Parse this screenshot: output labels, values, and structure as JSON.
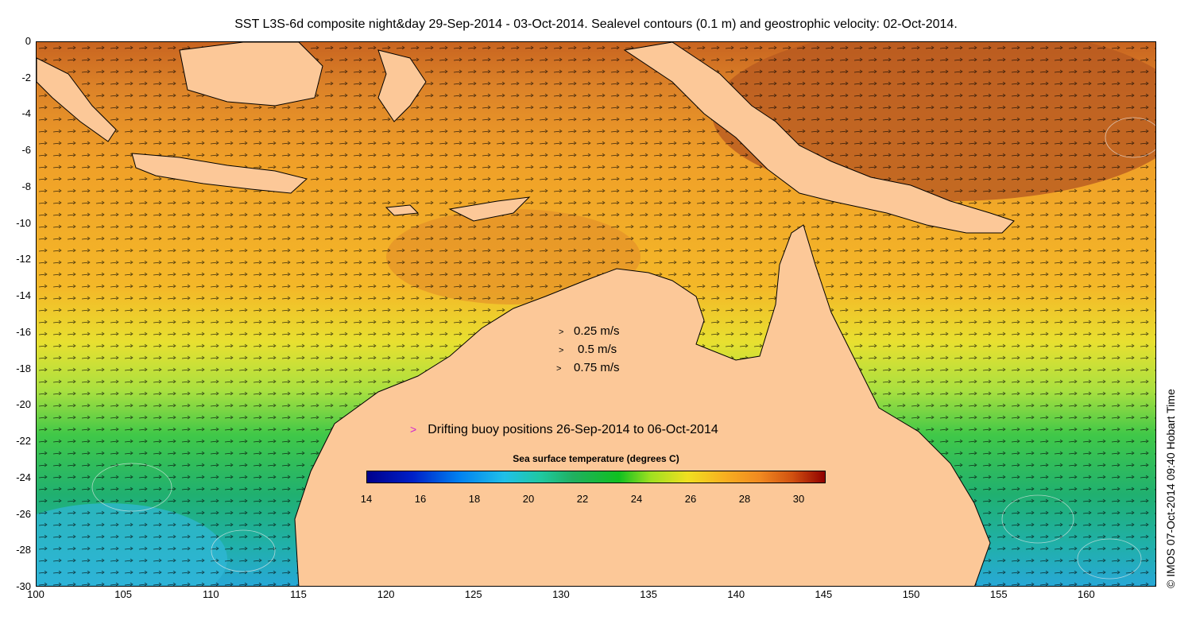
{
  "title": "SST L3S-6d composite night&day 29-Sep-2014 - 03-Oct-2014. Sealevel contours (0.1 m) and geostrophic velocity: 02-Oct-2014.",
  "credit": "© IMOS 07-Oct-2014 09:40 Hobart Time",
  "map": {
    "lon_range": [
      100,
      164
    ],
    "lat_range": [
      -30,
      0
    ],
    "x_ticks": [
      "100",
      "105",
      "110",
      "115",
      "120",
      "125",
      "130",
      "135",
      "140",
      "145",
      "150",
      "155",
      "160"
    ],
    "y_ticks": [
      "0",
      "-2",
      "-4",
      "-6",
      "-8",
      "-10",
      "-12",
      "-14",
      "-16",
      "-18",
      "-20",
      "-22",
      "-24",
      "-26",
      "-28",
      "-30"
    ],
    "colors": {
      "land": "#fcc898",
      "coast": "#000000",
      "contours": "#e8e8e8",
      "buoy": "#d020d0"
    }
  },
  "velocity_legend": [
    {
      "arrow": ">",
      "label": "0.25 m/s"
    },
    {
      "arrow": ">",
      "label": "0.5 m/s"
    },
    {
      "arrow": ">",
      "label": "0.75 m/s"
    }
  ],
  "buoy_legend": {
    "marker": ">",
    "label": "Drifting buoy positions 26-Sep-2014 to 06-Oct-2014"
  },
  "colorbar": {
    "title": "Sea surface temperature (degrees C)",
    "range": [
      14,
      31
    ],
    "tick_labels": [
      "14",
      "16",
      "18",
      "20",
      "22",
      "24",
      "26",
      "28",
      "30"
    ]
  }
}
